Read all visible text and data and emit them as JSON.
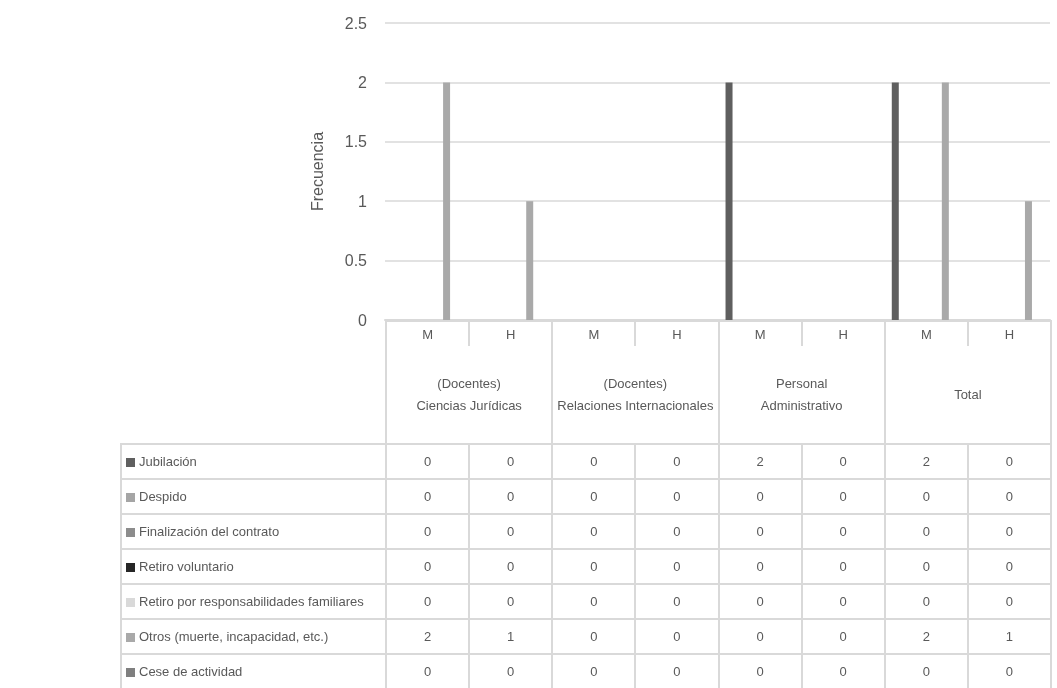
{
  "chart_data": {
    "type": "bar",
    "ylabel": "Frecuencia",
    "categories": [
      "M",
      "H",
      "M",
      "H",
      "M",
      "H",
      "M",
      "H"
    ],
    "annotations": [
      "(Docentes)\nCiencias Jurídicas",
      "(Docentes)\nRelaciones Internacionales",
      "Personal\nAdministrativo",
      "Total"
    ],
    "series": [
      {
        "name": "Jubilación",
        "color": "#5f5f5f",
        "values": [
          0,
          0,
          0,
          0,
          2,
          0,
          2,
          0
        ]
      },
      {
        "name": "Despido",
        "color": "#a5a5a5",
        "values": [
          0,
          0,
          0,
          0,
          0,
          0,
          0,
          0
        ]
      },
      {
        "name": "Finalización del contrato",
        "color": "#8c8c8c",
        "values": [
          0,
          0,
          0,
          0,
          0,
          0,
          0,
          0
        ]
      },
      {
        "name": "Retiro voluntario",
        "color": "#262626",
        "values": [
          0,
          0,
          0,
          0,
          0,
          0,
          0,
          0
        ]
      },
      {
        "name": "Retiro por responsabilidades familiares",
        "color": "#d9d9d9",
        "values": [
          0,
          0,
          0,
          0,
          0,
          0,
          0,
          0
        ]
      },
      {
        "name": "Otros (muerte, incapacidad, etc.)",
        "color": "#a9a9a9",
        "values": [
          2,
          1,
          0,
          0,
          0,
          0,
          2,
          1
        ]
      },
      {
        "name": "Cese de actividad",
        "color": "#7f7f7f",
        "values": [
          0,
          0,
          0,
          0,
          0,
          0,
          0,
          0
        ]
      }
    ],
    "ylim": [
      0,
      2.5
    ],
    "yticks": [
      0,
      0.5,
      1,
      1.5,
      2,
      2.5
    ],
    "grid": "y",
    "legend": "bottom",
    "data_labels": true
  }
}
